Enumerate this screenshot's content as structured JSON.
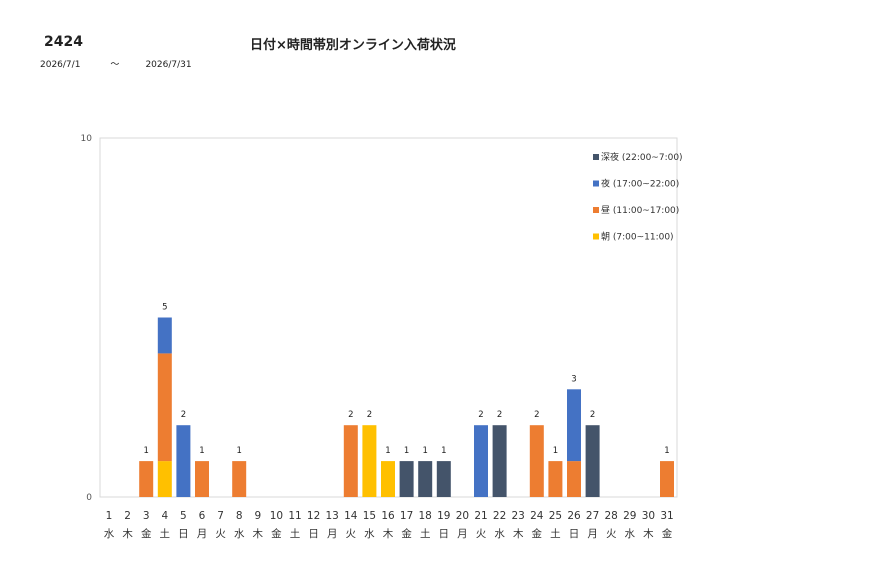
{
  "header": {
    "code": "2424",
    "title": "日付×時間帯別オンライン入荷状況",
    "date_from": "2026/7/1",
    "date_sep": "～",
    "date_to": "2026/7/31"
  },
  "chart_data": {
    "type": "bar",
    "stacked": true,
    "title": "日付×時間帯別オンライン入荷状況",
    "xlabel": "",
    "ylabel": "",
    "ylim": [
      0,
      10
    ],
    "yticks": [
      0,
      10
    ],
    "grid": false,
    "legend_position": "top-right",
    "categories": [
      "1",
      "2",
      "3",
      "4",
      "5",
      "6",
      "7",
      "8",
      "9",
      "10",
      "11",
      "12",
      "13",
      "14",
      "15",
      "16",
      "17",
      "18",
      "19",
      "20",
      "21",
      "22",
      "23",
      "24",
      "25",
      "26",
      "27",
      "28",
      "29",
      "30",
      "31"
    ],
    "weekdays": [
      "水",
      "木",
      "金",
      "土",
      "日",
      "月",
      "火",
      "水",
      "木",
      "金",
      "土",
      "日",
      "月",
      "火",
      "水",
      "木",
      "金",
      "土",
      "日",
      "月",
      "火",
      "水",
      "木",
      "金",
      "土",
      "日",
      "月",
      "火",
      "水",
      "木",
      "金"
    ],
    "series": [
      {
        "name": "朝 (7:00~11:00)",
        "color": "#FFC000",
        "values": [
          0,
          0,
          0,
          1,
          0,
          0,
          0,
          0,
          0,
          0,
          0,
          0,
          0,
          0,
          2,
          1,
          0,
          0,
          0,
          0,
          0,
          0,
          0,
          0,
          0,
          0,
          0,
          0,
          0,
          0,
          0
        ]
      },
      {
        "name": "昼 (11:00~17:00)",
        "color": "#ED7D31",
        "values": [
          0,
          0,
          1,
          3,
          0,
          1,
          0,
          1,
          0,
          0,
          0,
          0,
          0,
          2,
          0,
          0,
          0,
          0,
          0,
          0,
          0,
          0,
          0,
          2,
          1,
          1,
          0,
          0,
          0,
          0,
          1
        ]
      },
      {
        "name": "夜 (17:00~22:00)",
        "color": "#4472C4",
        "values": [
          0,
          0,
          0,
          1,
          2,
          0,
          0,
          0,
          0,
          0,
          0,
          0,
          0,
          0,
          0,
          0,
          0,
          0,
          0,
          0,
          2,
          0,
          0,
          0,
          0,
          2,
          0,
          0,
          0,
          0,
          0
        ]
      },
      {
        "name": "深夜 (22:00~7:00)",
        "color": "#44546A",
        "values": [
          0,
          0,
          0,
          0,
          0,
          0,
          0,
          0,
          0,
          0,
          0,
          0,
          0,
          0,
          0,
          0,
          1,
          1,
          1,
          0,
          0,
          2,
          0,
          0,
          0,
          0,
          2,
          0,
          0,
          0,
          0
        ]
      }
    ],
    "totals": [
      0,
      0,
      1,
      5,
      2,
      1,
      0,
      1,
      0,
      0,
      0,
      0,
      0,
      2,
      2,
      1,
      1,
      1,
      1,
      0,
      2,
      2,
      0,
      2,
      1,
      3,
      2,
      0,
      0,
      0,
      1
    ],
    "legend_order": [
      "深夜 (22:00~7:00)",
      "夜 (17:00~22:00)",
      "昼 (11:00~17:00)",
      "朝 (7:00~11:00)"
    ]
  }
}
